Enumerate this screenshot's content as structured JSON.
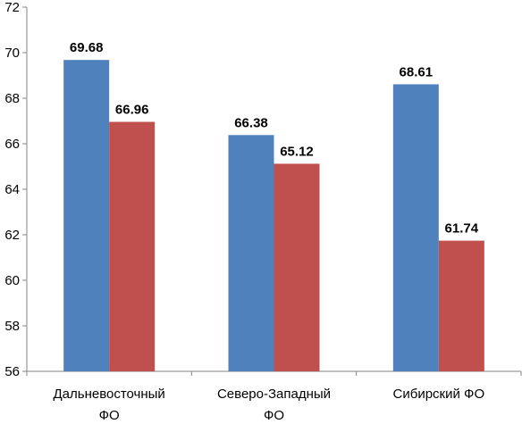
{
  "chart_data": {
    "type": "bar",
    "categories": [
      [
        "Дальневосточный",
        "ФО"
      ],
      [
        "Северо-Западный",
        "ФО"
      ],
      [
        "Сибирский ФО"
      ]
    ],
    "series": [
      {
        "values": [
          69.68,
          66.38,
          68.61
        ],
        "color": "#4f81bd"
      },
      {
        "values": [
          66.96,
          65.12,
          61.74
        ],
        "color": "#c0504d"
      }
    ],
    "data_labels": [
      [
        "69.68",
        "66.38",
        "68.61"
      ],
      [
        "66.96",
        "65.12",
        "61.74"
      ]
    ],
    "ylim": [
      56,
      72
    ],
    "yticks": [
      56,
      58,
      60,
      62,
      64,
      66,
      68,
      70,
      72
    ],
    "ytick_labels": [
      "56",
      "58",
      "60",
      "62",
      "64",
      "66",
      "68",
      "70",
      "72"
    ],
    "grid": false,
    "legend": "none"
  }
}
